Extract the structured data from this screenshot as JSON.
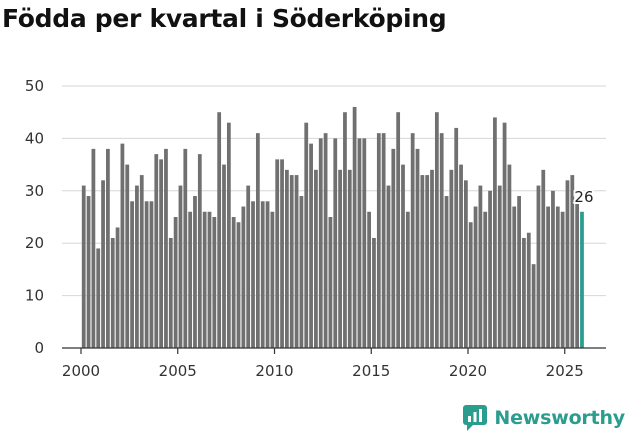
{
  "chart_data": {
    "type": "bar",
    "title": "Födda per kvartal i Söderköping",
    "xlabel": "",
    "ylabel": "",
    "ylim": [
      0,
      50
    ],
    "y_ticks": [
      0,
      10,
      20,
      30,
      40,
      50
    ],
    "x_ticks": [
      "2000",
      "2005",
      "2010",
      "2015",
      "2020",
      "2025"
    ],
    "start_year": 2000,
    "start_quarter": 1,
    "values": [
      31,
      29,
      38,
      19,
      32,
      38,
      21,
      23,
      39,
      35,
      28,
      31,
      33,
      28,
      28,
      37,
      36,
      38,
      21,
      25,
      31,
      38,
      26,
      29,
      37,
      26,
      26,
      25,
      45,
      35,
      43,
      25,
      24,
      27,
      31,
      28,
      41,
      28,
      28,
      26,
      36,
      36,
      34,
      33,
      33,
      29,
      43,
      39,
      34,
      40,
      41,
      25,
      40,
      34,
      45,
      34,
      46,
      40,
      40,
      26,
      21,
      41,
      41,
      31,
      38,
      45,
      35,
      26,
      41,
      38,
      33,
      33,
      34,
      45,
      41,
      29,
      34,
      42,
      35,
      32,
      24,
      27,
      31,
      26,
      30,
      44,
      31,
      43,
      35,
      27,
      29,
      21,
      22,
      16,
      31,
      34,
      27,
      30,
      27,
      26,
      32,
      33,
      28,
      26
    ],
    "bar_color": "#707070",
    "highlight_color": "#2a9d8f",
    "highlight_last": true,
    "last_value_label": "26",
    "grid": true
  },
  "brand": {
    "name": "Newsworthy",
    "color": "#2a9d8f"
  }
}
